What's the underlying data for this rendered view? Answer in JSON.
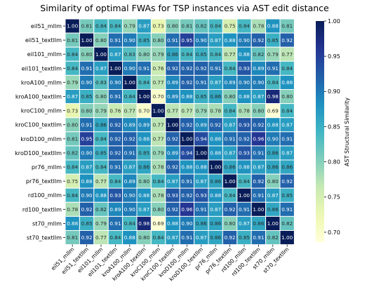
{
  "chart_data": {
    "type": "heatmap",
    "title": "Similarity of optimal FWAs for TSP instances via AST edit distance",
    "rows": [
      "eil51_mllm",
      "eil51_textllm",
      "eil101_mllm",
      "eil101_textllm",
      "kroA100_mllm",
      "kroA100_textllm",
      "kroC100_mllm",
      "kroC100_textllm",
      "kroD100_mllm",
      "kroD100_textllm",
      "pr76_mllm",
      "pr76_textllm",
      "rd100_mllm",
      "rd100_textllm",
      "st70_mllm",
      "st70_textllm"
    ],
    "cols": [
      "eil51_mllm",
      "eil51_textllm",
      "eil101_mllm",
      "eil101_textllm",
      "kroA100_mllm",
      "kroA100_textllm",
      "kroC100_mllm",
      "kroC100_textllm",
      "kroD100_mllm",
      "kroD100_textllm",
      "pr76_mllm",
      "pr76_textllm",
      "rd100_mllm",
      "rd100_textllm",
      "st70_mllm",
      "st70_textllm"
    ],
    "values": [
      [
        1.0,
        0.81,
        0.84,
        0.84,
        0.79,
        0.87,
        0.73,
        0.8,
        0.81,
        0.82,
        0.84,
        0.75,
        0.84,
        0.78,
        0.88,
        0.81
      ],
      [
        0.81,
        1.0,
        0.8,
        0.91,
        0.9,
        0.85,
        0.8,
        0.91,
        0.95,
        0.9,
        0.87,
        0.88,
        0.9,
        0.92,
        0.85,
        0.92
      ],
      [
        0.84,
        0.8,
        1.0,
        0.87,
        0.83,
        0.8,
        0.79,
        0.86,
        0.84,
        0.85,
        0.84,
        0.77,
        0.88,
        0.82,
        0.79,
        0.77
      ],
      [
        0.84,
        0.91,
        0.87,
        1.0,
        0.9,
        0.91,
        0.76,
        0.92,
        0.92,
        0.92,
        0.91,
        0.84,
        0.93,
        0.89,
        0.91,
        0.84
      ],
      [
        0.79,
        0.9,
        0.83,
        0.9,
        1.0,
        0.84,
        0.77,
        0.89,
        0.92,
        0.91,
        0.87,
        0.89,
        0.9,
        0.9,
        0.84,
        0.88
      ],
      [
        0.87,
        0.85,
        0.8,
        0.91,
        0.84,
        1.0,
        0.7,
        0.89,
        0.88,
        0.85,
        0.86,
        0.8,
        0.88,
        0.87,
        0.98,
        0.8
      ],
      [
        0.73,
        0.8,
        0.79,
        0.76,
        0.77,
        0.7,
        1.0,
        0.77,
        0.77,
        0.79,
        0.78,
        0.84,
        0.78,
        0.8,
        0.69,
        0.84
      ],
      [
        0.8,
        0.91,
        0.86,
        0.92,
        0.89,
        0.89,
        0.77,
        1.0,
        0.92,
        0.89,
        0.92,
        0.87,
        0.93,
        0.92,
        0.88,
        0.87
      ],
      [
        0.81,
        0.95,
        0.84,
        0.92,
        0.92,
        0.88,
        0.77,
        0.92,
        1.0,
        0.94,
        0.88,
        0.91,
        0.92,
        0.96,
        0.9,
        0.91
      ],
      [
        0.82,
        0.9,
        0.85,
        0.92,
        0.91,
        0.85,
        0.79,
        0.89,
        0.94,
        1.0,
        0.88,
        0.87,
        0.93,
        0.91,
        0.86,
        0.87
      ],
      [
        0.84,
        0.87,
        0.84,
        0.91,
        0.87,
        0.86,
        0.78,
        0.92,
        0.88,
        0.88,
        1.0,
        0.86,
        0.88,
        0.87,
        0.86,
        0.86
      ],
      [
        0.75,
        0.88,
        0.77,
        0.84,
        0.89,
        0.8,
        0.84,
        0.87,
        0.91,
        0.87,
        0.86,
        1.0,
        0.84,
        0.92,
        0.8,
        0.92
      ],
      [
        0.84,
        0.9,
        0.88,
        0.93,
        0.9,
        0.88,
        0.78,
        0.93,
        0.92,
        0.93,
        0.88,
        0.84,
        1.0,
        0.91,
        0.87,
        0.85
      ],
      [
        0.78,
        0.92,
        0.82,
        0.89,
        0.9,
        0.87,
        0.8,
        0.92,
        0.96,
        0.91,
        0.87,
        0.92,
        0.91,
        1.0,
        0.86,
        0.91
      ],
      [
        0.88,
        0.85,
        0.79,
        0.91,
        0.84,
        0.98,
        0.69,
        0.88,
        0.9,
        0.86,
        0.86,
        0.8,
        0.87,
        0.86,
        1.0,
        0.82
      ],
      [
        0.81,
        0.92,
        0.77,
        0.84,
        0.88,
        0.8,
        0.84,
        0.87,
        0.91,
        0.87,
        0.86,
        0.92,
        0.85,
        0.91,
        0.82,
        1.0
      ]
    ],
    "colorbar": {
      "label": "AST Structural Similarity",
      "vmin": 0.686,
      "vmax": 1.0,
      "ticks": [
        "0.70",
        "0.75",
        "0.80",
        "0.85",
        "0.90",
        "0.95",
        "1.00"
      ],
      "colormap": "YlGnBu"
    },
    "grid": true
  }
}
